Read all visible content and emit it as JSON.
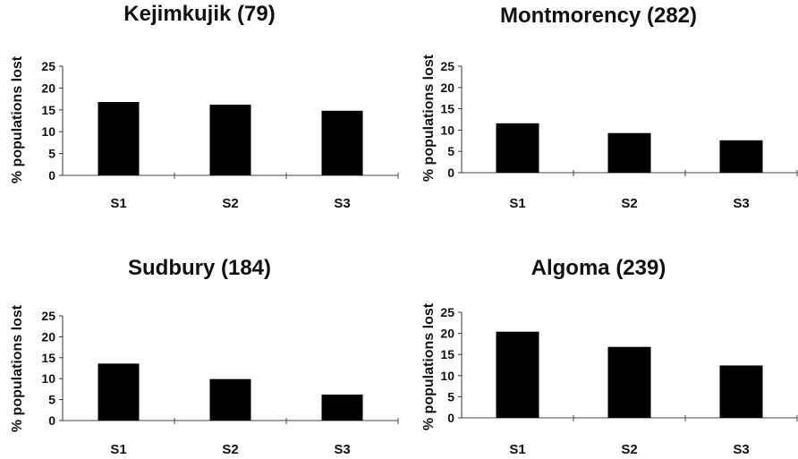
{
  "chart_data": [
    {
      "type": "bar",
      "title": "Kejimkujik (79)",
      "ylabel": "% populations lost",
      "xlabel": "",
      "categories": [
        "S1",
        "S2",
        "S3"
      ],
      "values": [
        16.8,
        16.2,
        14.8
      ],
      "ylim": [
        0,
        25
      ],
      "yticks": [
        0,
        5,
        10,
        15,
        20,
        25
      ],
      "grid": false,
      "bar_color": "#000000"
    },
    {
      "type": "bar",
      "title": "Montmorency (282)",
      "ylabel": "% populations lost",
      "xlabel": "",
      "categories": [
        "S1",
        "S2",
        "S3"
      ],
      "values": [
        11.6,
        9.3,
        7.6
      ],
      "ylim": [
        0,
        25
      ],
      "yticks": [
        0,
        5,
        10,
        15,
        20,
        25
      ],
      "grid": false,
      "bar_color": "#000000"
    },
    {
      "type": "bar",
      "title": "Sudbury (184)",
      "ylabel": "% populations lost",
      "xlabel": "",
      "categories": [
        "S1",
        "S2",
        "S3"
      ],
      "values": [
        13.6,
        9.9,
        6.2
      ],
      "ylim": [
        0,
        25
      ],
      "yticks": [
        0,
        5,
        10,
        15,
        20,
        25
      ],
      "grid": false,
      "bar_color": "#000000"
    },
    {
      "type": "bar",
      "title": "Algoma (239)",
      "ylabel": "% populations lost",
      "xlabel": "",
      "categories": [
        "S1",
        "S2",
        "S3"
      ],
      "values": [
        20.4,
        16.8,
        12.4
      ],
      "ylim": [
        0,
        25
      ],
      "yticks": [
        0,
        5,
        10,
        15,
        20,
        25
      ],
      "grid": false,
      "bar_color": "#000000"
    }
  ]
}
